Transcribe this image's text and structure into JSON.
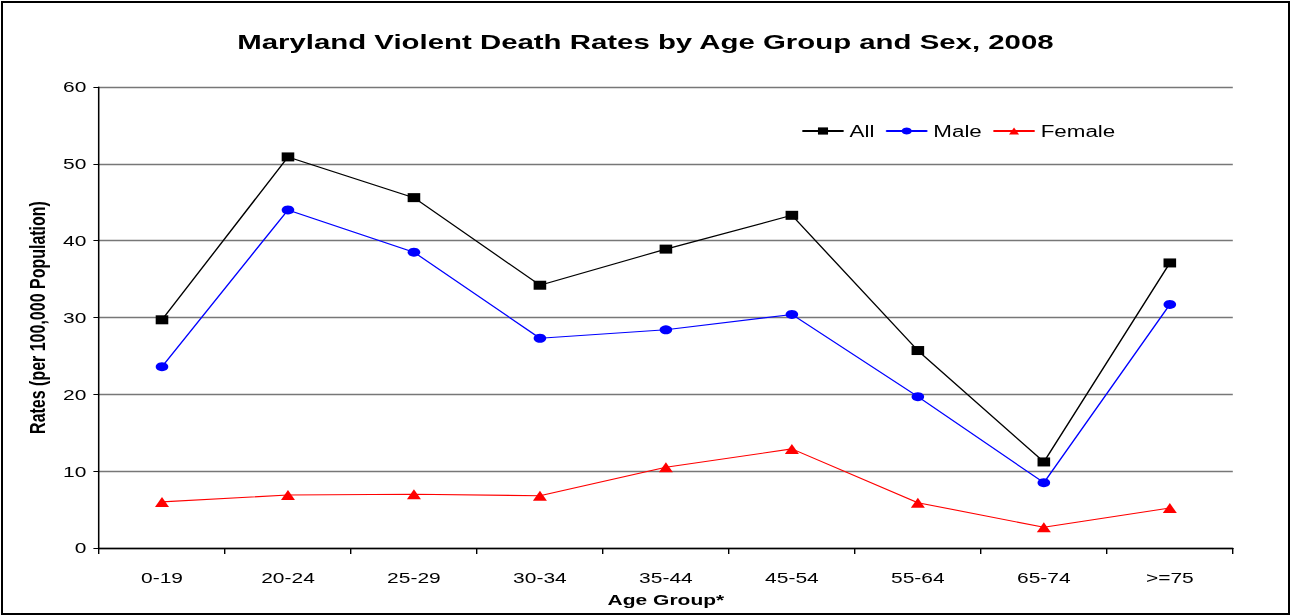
{
  "chart_data": {
    "type": "line",
    "title": "Maryland Violent Death Rates by Age Group and Sex, 2008",
    "xlabel": "Age Group*",
    "ylabel": "Rates (per 100,000 Population)",
    "categories": [
      "0-19",
      "20-24",
      "25-29",
      "30-34",
      "35-44",
      "45-54",
      "55-64",
      "65-74",
      ">=75"
    ],
    "series": [
      {
        "name": "All",
        "color": "#000000",
        "marker": "square",
        "values": [
          29.7,
          50.9,
          45.6,
          34.2,
          38.9,
          43.3,
          25.7,
          11.2,
          37.1
        ]
      },
      {
        "name": "Male",
        "color": "#0000ff",
        "marker": "circle",
        "values": [
          23.6,
          44.0,
          38.5,
          27.3,
          28.4,
          30.4,
          19.7,
          8.5,
          31.7
        ]
      },
      {
        "name": "Female",
        "color": "#ff0000",
        "marker": "triangle",
        "values": [
          6.0,
          6.9,
          7.0,
          6.8,
          10.5,
          12.9,
          5.9,
          2.7,
          5.2
        ]
      }
    ],
    "ylim": [
      0,
      60
    ],
    "yticks": [
      0,
      10,
      20,
      30,
      40,
      50,
      60
    ],
    "grid": "y",
    "legend": "top right",
    "line_style": "solid"
  }
}
